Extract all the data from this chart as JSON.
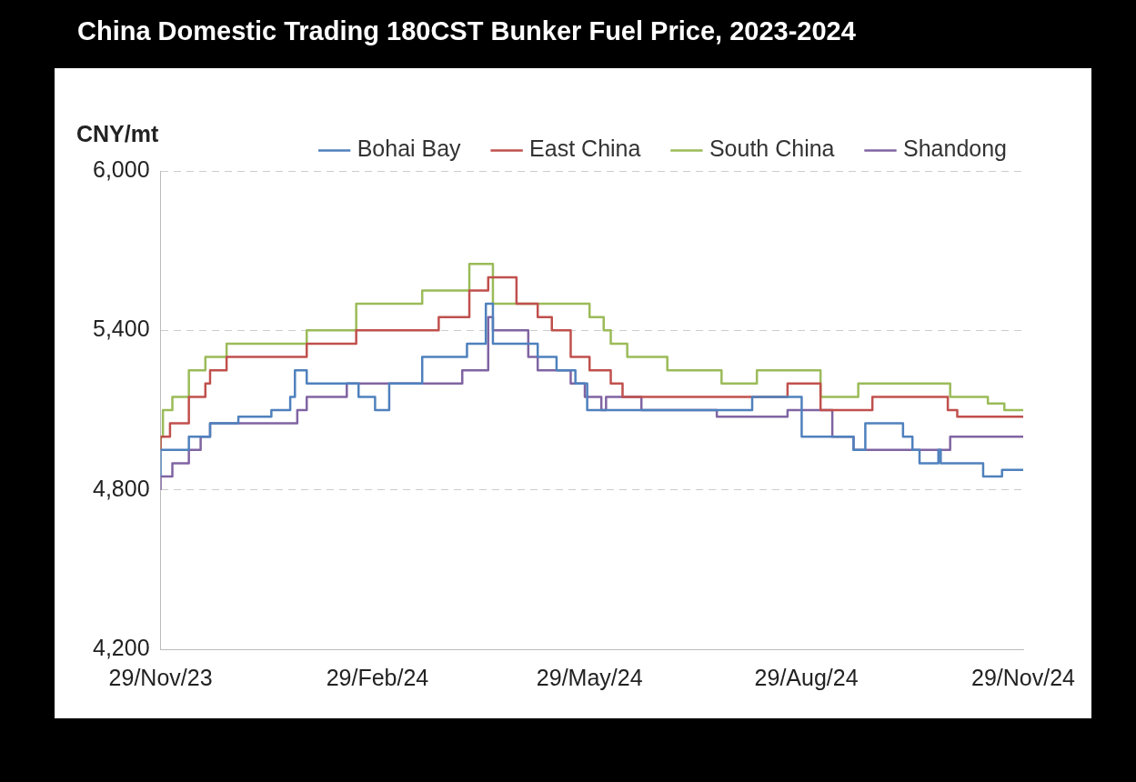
{
  "chart_data": {
    "type": "step",
    "title": "China Domestic Trading 180CST Bunker Fuel Price, 2023-2024",
    "ylabel": "CNY/mt",
    "xlim": [
      "2023-11-29",
      "2024-11-29"
    ],
    "xticks": [
      {
        "value": "2023-11-29",
        "label": "29/Nov/23"
      },
      {
        "value": "2024-02-29",
        "label": "29/Feb/24"
      },
      {
        "value": "2024-05-29",
        "label": "29/May/24"
      },
      {
        "value": "2024-08-29",
        "label": "29/Aug/24"
      },
      {
        "value": "2024-11-29",
        "label": "29/Nov/24"
      }
    ],
    "ylim": [
      4200,
      6000
    ],
    "yticks": [
      {
        "value": 4200,
        "label": "4,200"
      },
      {
        "value": 4800,
        "label": "4,800"
      },
      {
        "value": 5400,
        "label": "5,400"
      },
      {
        "value": 6000,
        "label": "6,000"
      }
    ],
    "grid": "y",
    "legend": "top",
    "marker": "none",
    "line_style": "solid",
    "series": [
      {
        "name": "Bohai Bay",
        "color": "#4f81bd",
        "x": [
          "2023-11-29",
          "2023-12-11",
          "2023-12-20",
          "2024-01-01",
          "2024-01-15",
          "2024-01-23",
          "2024-01-25",
          "2024-01-30",
          "2024-02-21",
          "2024-02-28",
          "2024-03-05",
          "2024-03-19",
          "2024-04-07",
          "2024-04-15",
          "2024-04-18",
          "2024-05-07",
          "2024-05-15",
          "2024-05-23",
          "2024-05-28",
          "2024-08-06",
          "2024-08-27",
          "2024-09-18",
          "2024-09-23",
          "2024-10-09",
          "2024-10-13",
          "2024-10-16",
          "2024-10-24",
          "2024-10-25",
          "2024-11-12",
          "2024-11-20",
          "2024-11-25",
          "2024-11-29"
        ],
        "values": [
          4850,
          4950,
          5000,
          5050,
          5075,
          5100,
          5150,
          5250,
          5200,
          5150,
          5100,
          5200,
          5300,
          5350,
          5500,
          5350,
          5300,
          5250,
          5200,
          5100,
          5150,
          5000,
          4950,
          5050,
          5000,
          4950,
          4900,
          4950,
          4900,
          4850,
          4875,
          4875
        ]
      },
      {
        "name": "East China",
        "color": "#c0504d",
        "x": [
          "2023-11-29",
          "2023-12-03",
          "2023-12-11",
          "2023-12-18",
          "2023-12-20",
          "2023-12-27",
          "2024-01-30",
          "2024-02-20",
          "2024-03-26",
          "2024-04-08",
          "2024-04-16",
          "2024-04-28",
          "2024-05-07",
          "2024-05-13",
          "2024-05-21",
          "2024-05-29",
          "2024-06-07",
          "2024-06-12",
          "2024-08-21",
          "2024-09-04",
          "2024-09-26",
          "2024-10-28",
          "2024-11-01",
          "2024-11-23",
          "2024-11-29"
        ],
        "values": [
          4950,
          5000,
          5050,
          5150,
          5200,
          5250,
          5300,
          5350,
          5400,
          5450,
          5550,
          5600,
          5500,
          5450,
          5400,
          5300,
          5250,
          5200,
          5150,
          5200,
          5100,
          5150,
          5100,
          5075,
          5075
        ]
      },
      {
        "name": "South China",
        "color": "#9bbb59",
        "x": [
          "2023-11-29",
          "2023-11-30",
          "2023-12-04",
          "2023-12-11",
          "2023-12-18",
          "2023-12-27",
          "2024-01-30",
          "2024-02-20",
          "2024-03-19",
          "2024-04-08",
          "2024-04-18",
          "2024-05-29",
          "2024-06-04",
          "2024-06-07",
          "2024-06-14",
          "2024-07-01",
          "2024-07-24",
          "2024-08-08",
          "2024-09-04",
          "2024-09-20",
          "2024-10-29",
          "2024-11-14",
          "2024-11-21",
          "2024-11-29"
        ],
        "values": [
          4950,
          5000,
          5100,
          5150,
          5250,
          5300,
          5350,
          5400,
          5500,
          5550,
          5650,
          5500,
          5450,
          5400,
          5350,
          5300,
          5250,
          5200,
          5250,
          5150,
          5200,
          5150,
          5125,
          5100
        ]
      },
      {
        "name": "Shandong",
        "color": "#8064a2",
        "x": [
          "2023-11-29",
          "2023-12-04",
          "2023-12-11",
          "2023-12-16",
          "2023-12-20",
          "2024-01-26",
          "2024-01-30",
          "2024-02-16",
          "2024-04-05",
          "2024-04-16",
          "2024-04-18",
          "2024-05-03",
          "2024-05-07",
          "2024-05-21",
          "2024-05-27",
          "2024-06-03",
          "2024-06-05",
          "2024-06-20",
          "2024-07-22",
          "2024-08-21",
          "2024-09-09",
          "2024-09-18",
          "2024-10-29",
          "2024-11-06",
          "2024-11-29"
        ],
        "values": [
          4800,
          4850,
          4900,
          4950,
          5000,
          5050,
          5100,
          5150,
          5200,
          5250,
          5450,
          5400,
          5300,
          5250,
          5200,
          5150,
          5100,
          5150,
          5100,
          5075,
          5100,
          5000,
          4950,
          5000,
          5000
        ]
      }
    ]
  }
}
